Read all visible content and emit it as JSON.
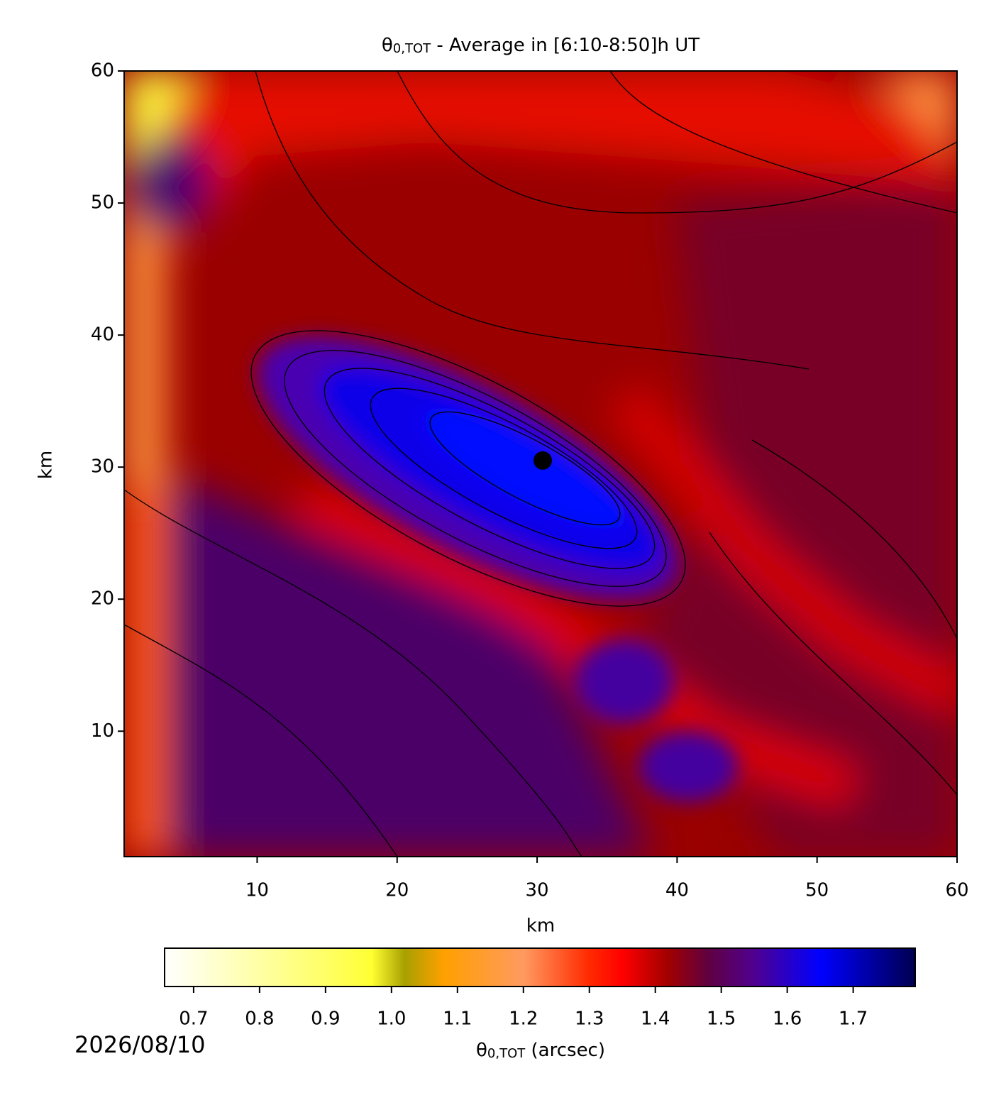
{
  "chart_data": {
    "type": "heatmap",
    "title": {
      "symbol": "θ",
      "subscript": "0,TOT",
      "text": " - Average in [6:10-8:50]h UT"
    },
    "xlabel": "km",
    "ylabel": "km",
    "xlim": [
      0.5,
      60
    ],
    "ylim": [
      0.5,
      60
    ],
    "xticks": [
      10,
      20,
      30,
      40,
      50,
      60
    ],
    "yticks": [
      10,
      20,
      30,
      40,
      50,
      60
    ],
    "marker": {
      "x": 30.4,
      "y": 30.5,
      "color": "#000000"
    },
    "colorbar": {
      "label": {
        "symbol": "θ",
        "subscript": "0,TOT",
        "text": " (arcsec)"
      },
      "clim": [
        0.656,
        1.794
      ],
      "ticks": [
        0.7,
        0.8,
        0.9,
        {
          "value": 1.0,
          "label": "1.0"
        },
        1.1,
        1.2,
        1.3,
        1.4,
        1.5,
        1.6,
        1.7
      ],
      "colormap": [
        {
          "value": 0.656,
          "color": "#ffffff"
        },
        {
          "value": 0.9,
          "color": "#ffff66"
        },
        {
          "value": 0.97,
          "color": "#ffff33"
        },
        {
          "value": 1.02,
          "color": "#a8a000"
        },
        {
          "value": 1.08,
          "color": "#ffa000"
        },
        {
          "value": 1.2,
          "color": "#ff9a60"
        },
        {
          "value": 1.3,
          "color": "#ff2a00"
        },
        {
          "value": 1.35,
          "color": "#ff0000"
        },
        {
          "value": 1.42,
          "color": "#a00000"
        },
        {
          "value": 1.48,
          "color": "#600040"
        },
        {
          "value": 1.55,
          "color": "#500090"
        },
        {
          "value": 1.65,
          "color": "#0000ff"
        },
        {
          "value": 1.794,
          "color": "#000050"
        }
      ]
    }
  },
  "date": "2026/08/10"
}
